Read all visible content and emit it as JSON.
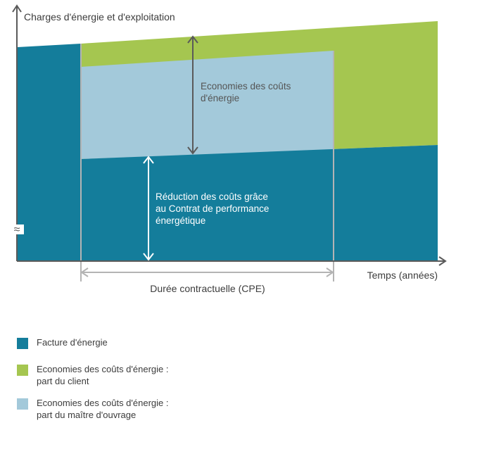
{
  "diagram": {
    "y_axis_label": "Charges d'énergie et d'exploitation",
    "x_axis_label": "Temps (années)",
    "savings_label_line1": "Economies des coûts",
    "savings_label_line2": "d'énergie",
    "reduction_label_line1": "Réduction des coûts grâce",
    "reduction_label_line2": "au Contrat de performance",
    "reduction_label_line3": "énergétique",
    "duration_label": "Durée contractuelle (CPE)",
    "axis_break_glyph": "≈"
  },
  "legend": {
    "items": [
      {
        "line1": "Facture d'énergie",
        "line2": "",
        "color": "#147d9b"
      },
      {
        "line1": "Economies des coûts d'énergie :",
        "line2": "part du client",
        "color": "#a5c650"
      },
      {
        "line1": "Economies des coûts d'énergie :",
        "line2": "part du maître d'ouvrage",
        "color": "#a3c9da"
      }
    ]
  },
  "colors": {
    "energy_bill": "#147d9b",
    "client_savings": "#a5c650",
    "owner_savings": "#a3c9da",
    "axis": "#5a5a5a",
    "marker_lines": "#b4b4b4"
  }
}
